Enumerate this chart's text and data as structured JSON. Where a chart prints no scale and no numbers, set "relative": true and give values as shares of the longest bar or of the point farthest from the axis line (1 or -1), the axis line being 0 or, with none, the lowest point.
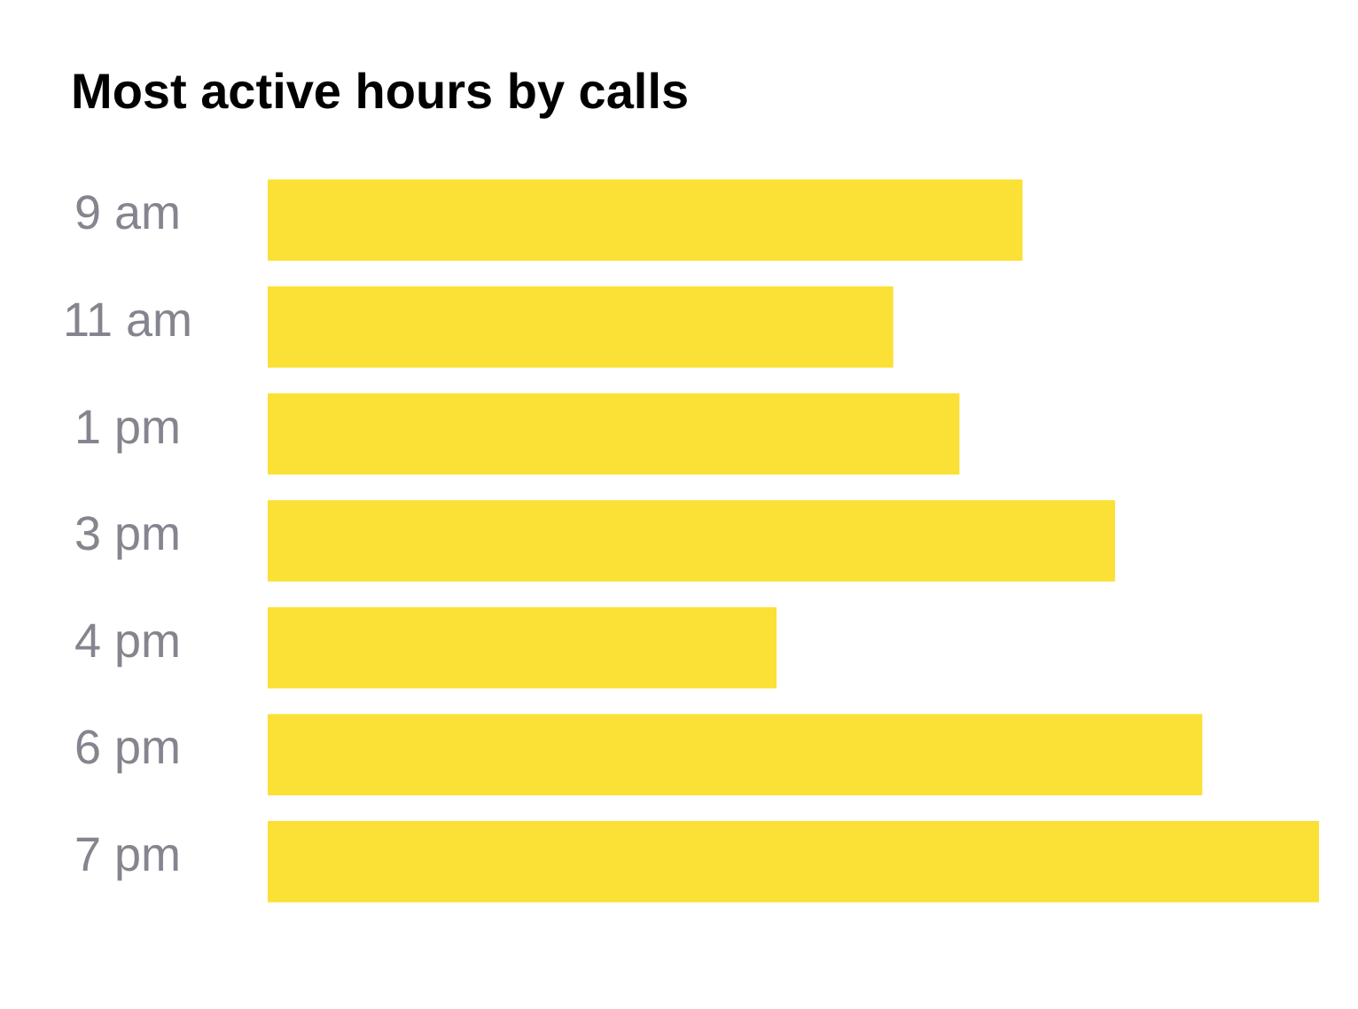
{
  "chart_data": {
    "type": "bar",
    "orientation": "horizontal",
    "relative": true,
    "title": "Most active hours by calls",
    "categories": [
      "9 am",
      "11 am",
      "1 pm",
      "3 pm",
      "4 pm",
      "6 pm",
      "7 pm"
    ],
    "values": [
      0.718,
      0.595,
      0.658,
      0.806,
      0.484,
      0.889,
      1
    ],
    "color": "#fbe035"
  }
}
